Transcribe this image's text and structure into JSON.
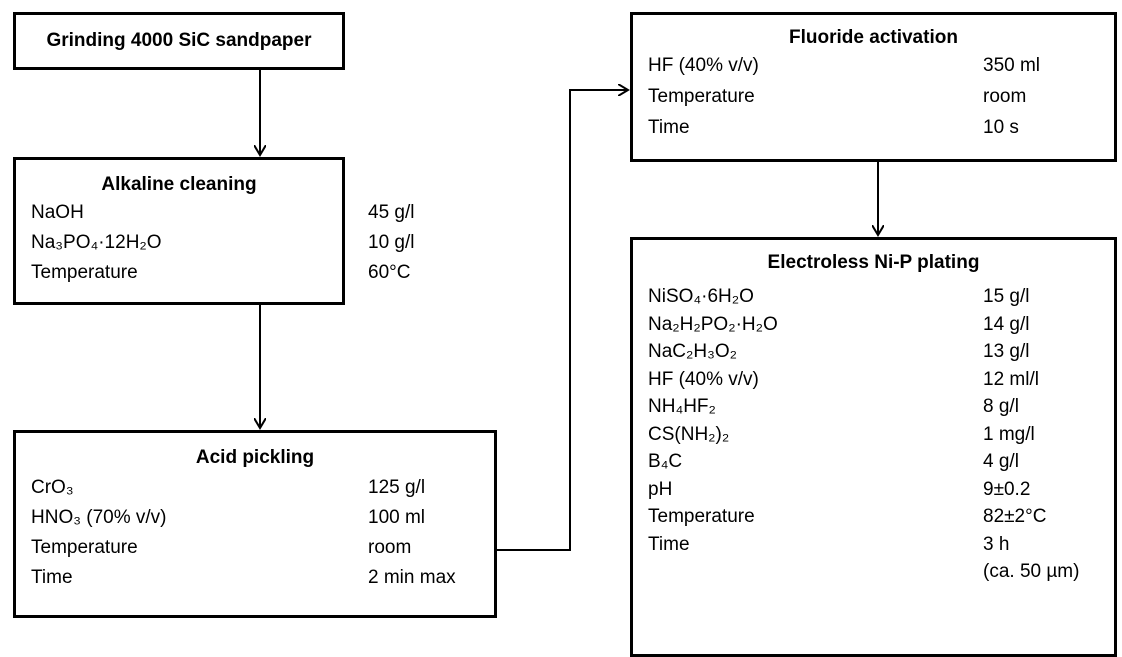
{
  "nodes": [
    {
      "title": "Grinding 4000 SiC sandpaper"
    },
    {
      "title": "Alkaline cleaning",
      "rows": [
        {
          "label": "NaOH",
          "value": "45 g/l"
        },
        {
          "label": "Na₃PO₄·12H₂O",
          "value": "10 g/l"
        },
        {
          "label": "Temperature",
          "value": "60°C"
        }
      ]
    },
    {
      "title": "Acid pickling",
      "rows": [
        {
          "label": "CrO₃",
          "value": "125 g/l"
        },
        {
          "label": "HNO₃ (70% v/v)",
          "value": "100 ml"
        },
        {
          "label": "Temperature",
          "value": "room"
        },
        {
          "label": "Time",
          "value": "2 min max"
        }
      ]
    },
    {
      "title": "Fluoride activation",
      "rows": [
        {
          "label": "HF (40% v/v)",
          "value": "350 ml"
        },
        {
          "label": "Temperature",
          "value": "room"
        },
        {
          "label": "Time",
          "value": "10 s"
        }
      ]
    },
    {
      "title": "Electroless Ni-P plating",
      "rows": [
        {
          "label": "NiSO₄·6H₂O",
          "value": "15 g/l"
        },
        {
          "label": "Na₂H₂PO₂·H₂O",
          "value": "14 g/l"
        },
        {
          "label": "NaC₂H₃O₂",
          "value": "13 g/l"
        },
        {
          "label": "HF (40% v/v)",
          "value": "12 ml/l"
        },
        {
          "label": "NH₄HF₂",
          "value": "8 g/l"
        },
        {
          "label": "CS(NH₂)₂",
          "value": "1 mg/l"
        },
        {
          "label": "B₄C",
          "value": "4 g/l"
        },
        {
          "label": "pH",
          "value": "9±0.2"
        },
        {
          "label": "Temperature",
          "value": "82±2°C"
        },
        {
          "label": "Time",
          "value": "3 h",
          "note": "(ca. 50 µm)"
        }
      ]
    }
  ]
}
